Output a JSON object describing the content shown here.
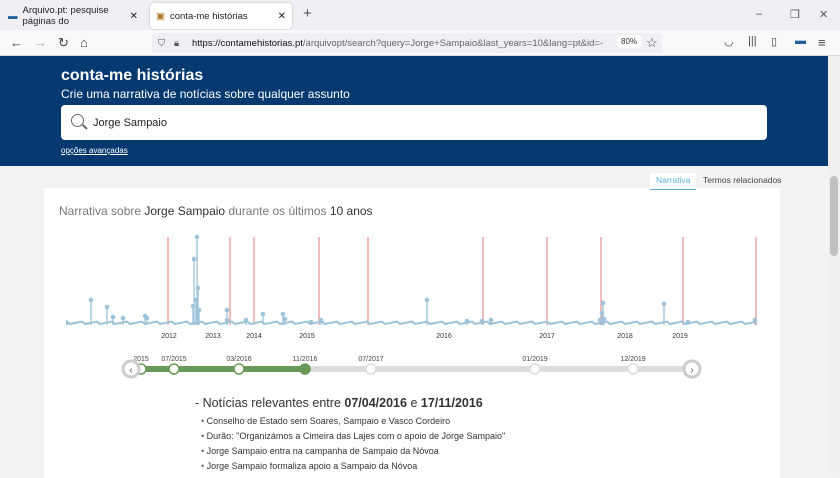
{
  "browser": {
    "tabs": [
      {
        "title": "Arquivo.pt: pesquise páginas do"
      },
      {
        "title": "conta-me histórias"
      }
    ],
    "url_host": "https://contamehistorias.pt",
    "url_path": "/arquivopt/search?query=Jorge+Sampaio&last_years=10&lang=pt&id=-",
    "zoom": "80%"
  },
  "header": {
    "title": "conta-me histórias",
    "subtitle": "Crie uma narrativa de notícias sobre qualquer assunto",
    "search_value": "Jorge Sampaio",
    "advanced": "opções avançadas"
  },
  "view_tabs": [
    {
      "label": "Narrativa",
      "active": true
    },
    {
      "label": "Termos relacionados",
      "active": false
    }
  ],
  "narrative": {
    "prefix": "Narrativa sobre",
    "query": "Jorge Sampaio",
    "middle": "durante os últimos",
    "years": "10 anos"
  },
  "timeline": {
    "year_labels": [
      "2012",
      "2013",
      "2014",
      "2015",
      "2016",
      "2017",
      "2018",
      "2019"
    ],
    "colors": {
      "volume": "#9ec2d9",
      "event": "#e07a7a"
    }
  },
  "slider": {
    "labels": [
      "2015",
      "07/2015",
      "03/2016",
      "11/2016",
      "07/2017",
      "01/2019",
      "12/2019"
    ],
    "selected_range": [
      "07/2015",
      "11/2016"
    ],
    "active_color": "#6a9a5a"
  },
  "news": {
    "prefix": "- Notícias relevantes entre",
    "from": "07/04/2016",
    "and": "e",
    "to": "17/11/2016",
    "items": [
      "Conselho de Estado sem Soares, Sampaio e Vasco Cordeiro",
      "Durão: \"Organizámos a Cimeira das Lajes com o apoio de Jorge Sampaio\"",
      "Jorge Sampaio entra na campanha de Sampaio da Nóvoa",
      "Jorge Sampaio formaliza apoio a Sampaio da Nóvoa"
    ]
  }
}
